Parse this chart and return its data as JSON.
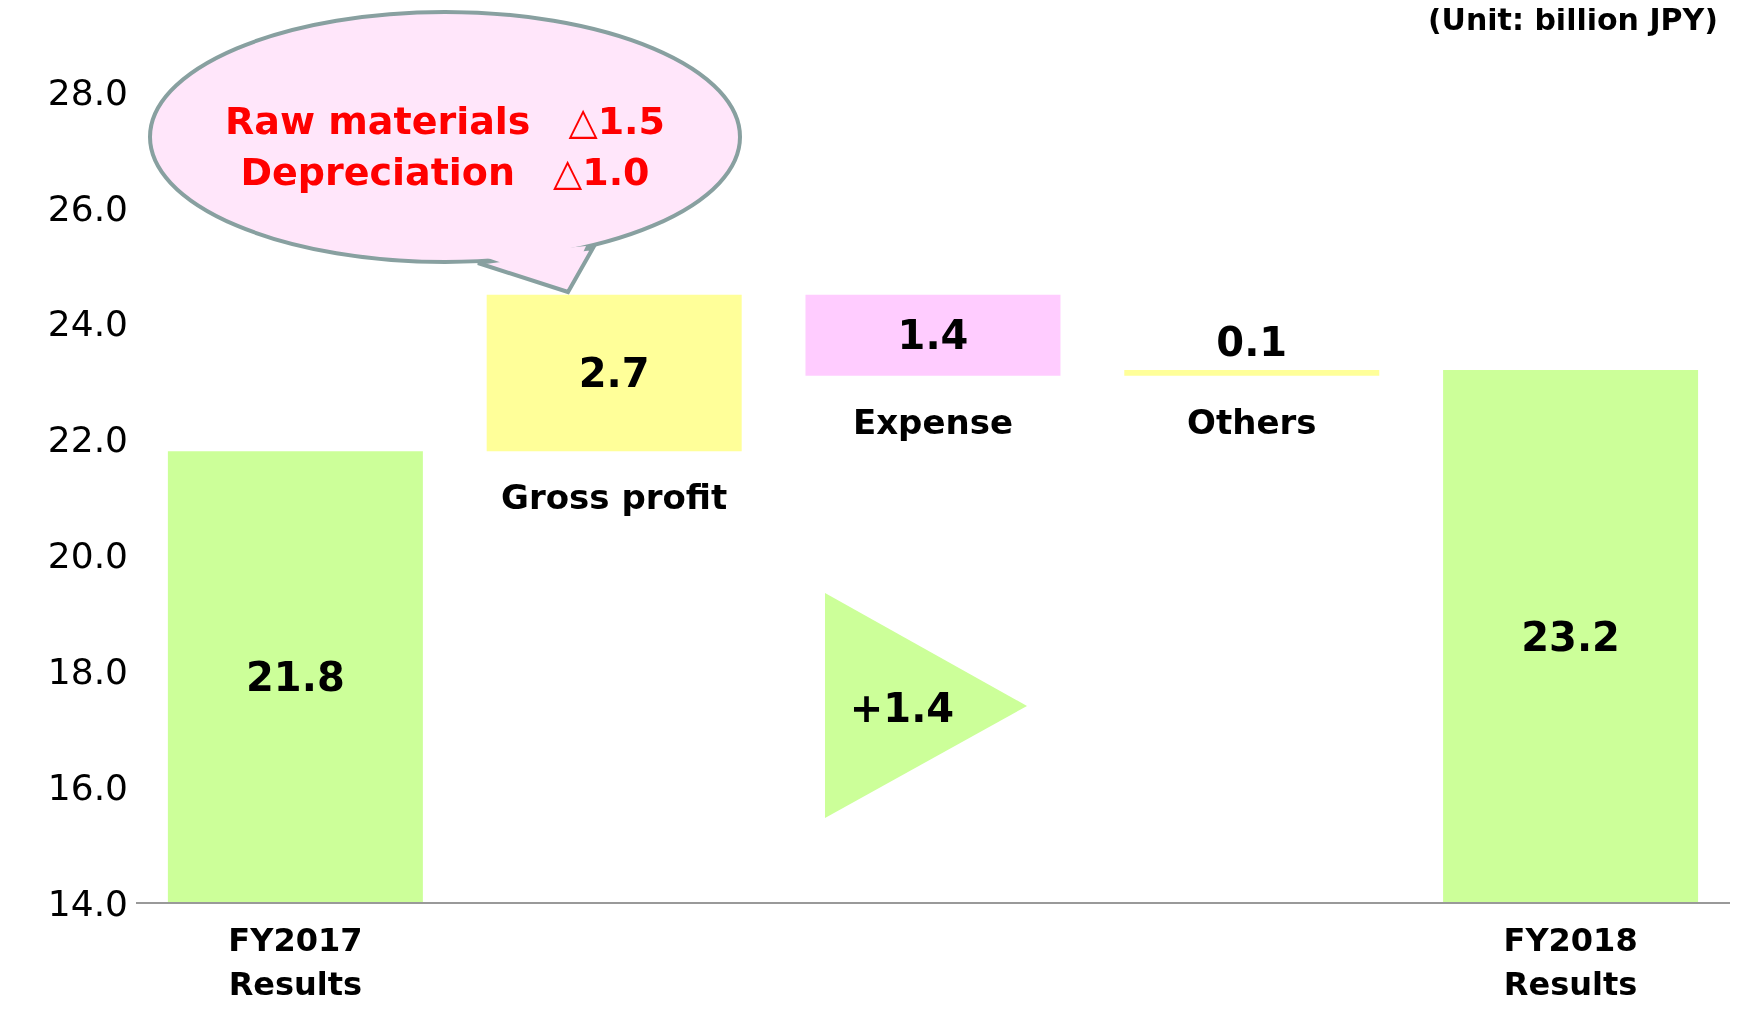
{
  "chart_data": {
    "type": "bar",
    "categories": [
      "FY2017 Results",
      "Gross profit",
      "Expense",
      "Others",
      "FY2018 Results"
    ],
    "base": [
      14,
      21.8,
      24.5,
      23.1,
      14
    ],
    "values": [
      7.8,
      2.7,
      -1.4,
      0.1,
      9.2
    ],
    "value_labels": [
      "21.8",
      "2.7",
      "1.4",
      "0.1",
      "23.2"
    ],
    "colors": [
      "#ccff99",
      "#ffff99",
      "#ffccff",
      "#ffff99",
      "#ccff99"
    ],
    "ylim": [
      14,
      28
    ],
    "yticks": [
      {
        "value": 14,
        "label": "14.0"
      },
      {
        "value": 16,
        "label": "16.0"
      },
      {
        "value": 18,
        "label": "18.0"
      },
      {
        "value": 20,
        "label": "20.0"
      },
      {
        "value": 22,
        "label": "22.0"
      },
      {
        "value": 24,
        "label": "24.0"
      },
      {
        "value": 26,
        "label": "26.0"
      },
      {
        "value": 28,
        "label": "28.0"
      }
    ],
    "grid": false,
    "legend": false,
    "annotations": [
      "(Unit: billion JPY)",
      "Raw materials　△1.5",
      "Depreciation　△1.0",
      "+1.4"
    ]
  }
}
